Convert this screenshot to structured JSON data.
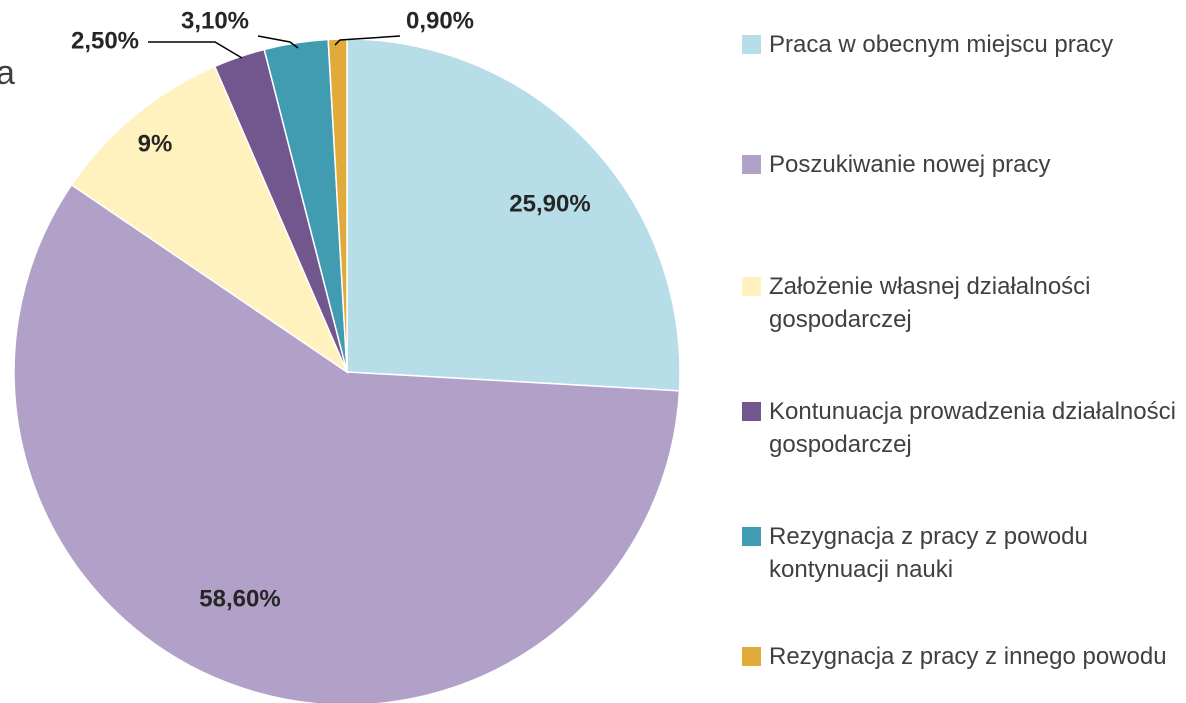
{
  "chart_data": {
    "type": "pie",
    "annotations": [
      "a"
    ],
    "categories": [
      "Praca w obecnym miejscu pracy",
      "Poszukiwanie nowej pracy",
      "Założenie własnej działalności gospodarczej",
      "Kontunuacja prowadzenia działalności gospodarczej",
      "Rezygnacja z pracy z powodu kontynuacji nauki",
      "Rezygnacja z pracy z innego powodu"
    ],
    "values": [
      25.9,
      58.6,
      9,
      2.5,
      3.1,
      0.9
    ],
    "value_labels": [
      "25,90%",
      "58,60%",
      "9%",
      "2,50%",
      "3,10%",
      "0,90%"
    ],
    "colors": [
      "#b7dde8",
      "#b1a0c7",
      "#fff2bf",
      "#72578f",
      "#419bb1",
      "#e0ab3b"
    ],
    "legend": "right"
  }
}
